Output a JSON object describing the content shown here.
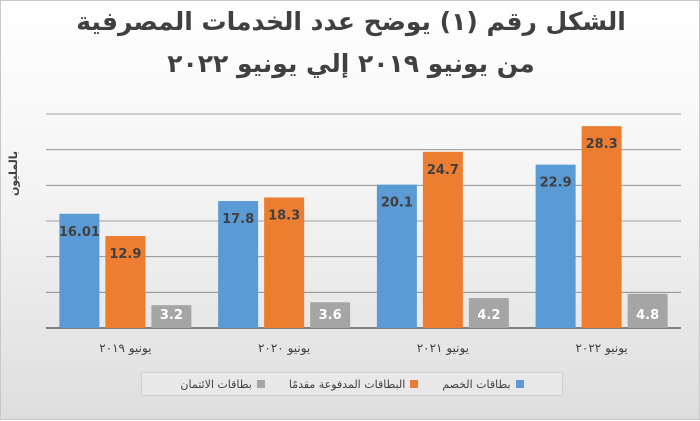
{
  "title": {
    "line1": "الشكل رقم (١) يوضح عدد الخدمات المصرفية",
    "line2": "من يونيو ٢٠١٩ إلي يونيو ٢٠٢٢"
  },
  "colors": {
    "debit": "#5b9bd5",
    "prepaid": "#ed7d31",
    "credit": "#a5a5a5",
    "gridline": "#000000",
    "axis_text": "#404040"
  },
  "chart_data": {
    "type": "bar",
    "title": "الشكل رقم (١) يوضح عدد الخدمات المصرفية من يونيو ٢٠١٩ إلي يونيو ٢٠٢٢",
    "xlabel": "",
    "ylabel": "بالمليون",
    "categories": [
      "يونيو ٢٠١٩",
      "يونيو ٢٠٢٠",
      "يونيو ٢٠٢١",
      "يونيو ٢٠٢٢"
    ],
    "series": [
      {
        "name": "بطاقات الخصم",
        "values": [
          16.01,
          17.8,
          20.1,
          22.9
        ],
        "labels": [
          "16.01",
          "17.8",
          "20.1",
          "22.9"
        ]
      },
      {
        "name": "البطاقات المدفوعة مقدمًا",
        "values": [
          12.9,
          18.3,
          24.7,
          28.3
        ],
        "labels": [
          "12.9",
          "18.3",
          "24.7",
          "28.3"
        ]
      },
      {
        "name": "بطاقات الائتمان",
        "values": [
          3.2,
          3.6,
          4.2,
          4.8
        ],
        "labels": [
          "3.2",
          "3.6",
          "4.2",
          "4.8"
        ]
      }
    ],
    "ylim": [
      0,
      30
    ],
    "grid": true,
    "legend_position": "bottom"
  }
}
